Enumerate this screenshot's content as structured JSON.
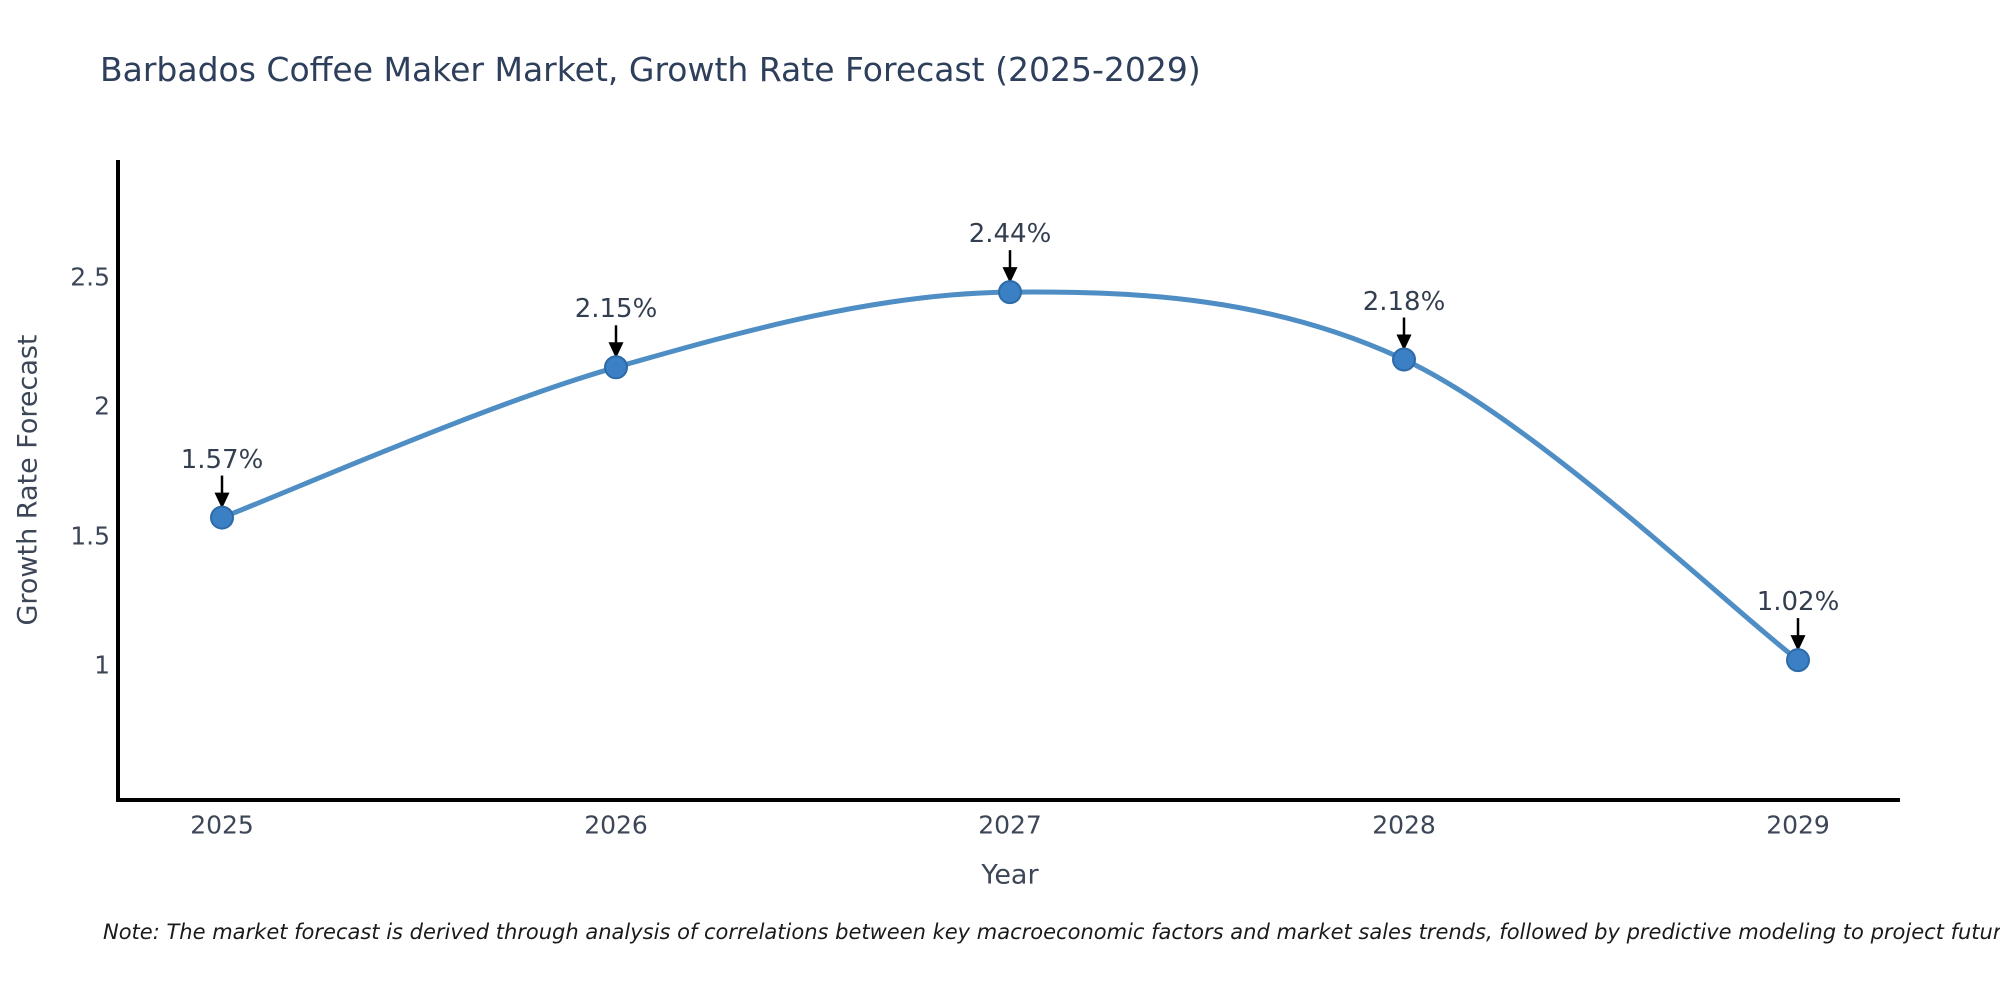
{
  "chart_data": {
    "type": "line",
    "title": "Barbados Coffee Maker Market, Growth Rate Forecast (2025-2029)",
    "xlabel": "Year",
    "ylabel": "Growth Rate Forecast",
    "x": [
      2025,
      2026,
      2027,
      2028,
      2029
    ],
    "series": [
      {
        "name": "Growth Rate Forecast",
        "values": [
          1.57,
          2.15,
          2.44,
          2.18,
          1.02
        ],
        "point_labels": [
          "1.57%",
          "2.15%",
          "2.44%",
          "2.18%",
          "1.02%"
        ]
      }
    ],
    "x_tick_labels": [
      "2025",
      "2026",
      "2027",
      "2028",
      "2029"
    ],
    "y_ticks": [
      1,
      1.5,
      2,
      2.5
    ],
    "y_tick_labels": [
      "1",
      "1.5",
      "2",
      "2.5"
    ],
    "ylim": [
      0.48,
      2.95
    ],
    "grid": false,
    "legend": false,
    "line_style": "spline",
    "markers": "circle",
    "annotation_arrows": true,
    "note": "Note: The market forecast is derived through analysis of correlations between key macroeconomic factors and market sales trends, followed by predictive modeling to project future sales",
    "colors": {
      "line": "#4e8ec5",
      "marker_fill": "#3b80c4",
      "marker_edge": "#2d6aa8",
      "axis_line": "#000000",
      "arrow": "#000000",
      "title_text": "#2e3f5c",
      "tick_text": "#3c4657",
      "annotation_text": "#333f50",
      "background": "#ffffff"
    }
  }
}
